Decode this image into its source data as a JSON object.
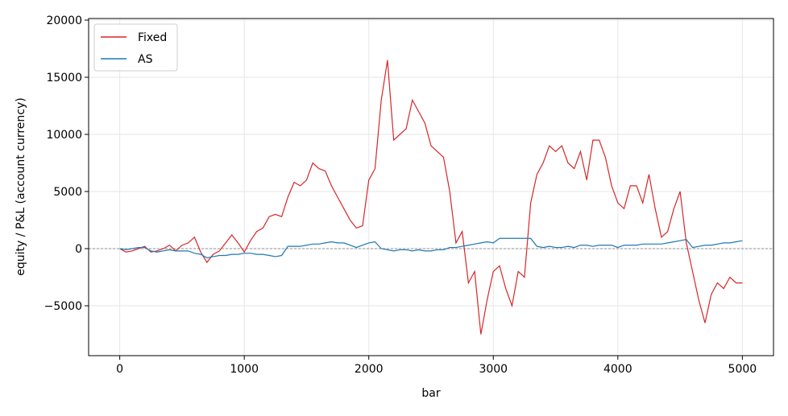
{
  "chart_data": {
    "type": "line",
    "xlabel": "bar",
    "ylabel": "equity / P&L (account currency)",
    "x": [
      0,
      50,
      100,
      150,
      200,
      250,
      300,
      350,
      400,
      450,
      500,
      550,
      600,
      650,
      700,
      750,
      800,
      850,
      900,
      950,
      1000,
      1050,
      1100,
      1150,
      1200,
      1250,
      1300,
      1350,
      1400,
      1450,
      1500,
      1550,
      1600,
      1650,
      1700,
      1750,
      1800,
      1850,
      1900,
      1950,
      2000,
      2050,
      2100,
      2150,
      2200,
      2250,
      2300,
      2350,
      2400,
      2450,
      2500,
      2550,
      2600,
      2650,
      2700,
      2750,
      2800,
      2850,
      2900,
      2950,
      3000,
      3050,
      3100,
      3150,
      3200,
      3250,
      3300,
      3350,
      3400,
      3450,
      3500,
      3550,
      3600,
      3650,
      3700,
      3750,
      3800,
      3850,
      3900,
      3950,
      4000,
      4050,
      4100,
      4150,
      4200,
      4250,
      4300,
      4350,
      4400,
      4450,
      4500,
      4550,
      4600,
      4650,
      4700,
      4750,
      4800,
      4850,
      4900,
      4950,
      5000
    ],
    "series": [
      {
        "name": "Fixed",
        "color": "#d62728",
        "values": [
          0,
          -300,
          -200,
          0,
          200,
          -300,
          -200,
          0,
          300,
          -200,
          300,
          500,
          1000,
          -300,
          -1200,
          -500,
          -200,
          500,
          1200,
          500,
          -300,
          700,
          1500,
          1800,
          2800,
          3000,
          2800,
          4500,
          5800,
          5500,
          6000,
          7500,
          7000,
          6800,
          5500,
          4500,
          3500,
          2500,
          1800,
          2000,
          6000,
          7000,
          13000,
          16500,
          9500,
          10000,
          10500,
          13000,
          12000,
          11000,
          9000,
          8500,
          8000,
          5000,
          500,
          1500,
          -3000,
          -2000,
          -7500,
          -4500,
          -2000,
          -1500,
          -3500,
          -5000,
          -2000,
          -2500,
          4000,
          6500,
          7500,
          9000,
          8500,
          9000,
          7500,
          7000,
          8500,
          6000,
          9500,
          9500,
          8000,
          5500,
          4000,
          3500,
          5500,
          5500,
          4000,
          6500,
          3500,
          1000,
          1500,
          3500,
          5000,
          500,
          -2000,
          -4500,
          -6500,
          -4000,
          -3000,
          -3500,
          -2500,
          -3000,
          -3000
        ]
      },
      {
        "name": "AS",
        "color": "#1f77b4",
        "values": [
          0,
          -100,
          0,
          100,
          100,
          -200,
          -300,
          -200,
          -100,
          -200,
          -200,
          -200,
          -400,
          -500,
          -800,
          -700,
          -600,
          -600,
          -500,
          -500,
          -400,
          -400,
          -500,
          -500,
          -600,
          -700,
          -600,
          200,
          200,
          200,
          300,
          400,
          400,
          500,
          600,
          500,
          500,
          300,
          100,
          300,
          500,
          600,
          0,
          -100,
          -200,
          -100,
          -100,
          -200,
          -100,
          -200,
          -200,
          -100,
          -100,
          100,
          100,
          200,
          300,
          400,
          500,
          600,
          500,
          900,
          900,
          900,
          900,
          900,
          900,
          200,
          100,
          200,
          100,
          100,
          200,
          100,
          300,
          300,
          200,
          300,
          300,
          300,
          100,
          300,
          300,
          300,
          400,
          400,
          400,
          400,
          500,
          600,
          700,
          800,
          100,
          200,
          300,
          300,
          400,
          500,
          500,
          600,
          700
        ]
      }
    ],
    "xlim": [
      -250,
      5250
    ],
    "ylim": [
      -9366,
      20141
    ],
    "xticks": [
      0,
      1000,
      2000,
      3000,
      4000,
      5000
    ],
    "yticks": [
      {
        "value": -5000,
        "label": "−5000"
      },
      0,
      5000,
      10000,
      15000,
      20000
    ],
    "hline": 0,
    "grid": true,
    "legend": "upper left"
  }
}
